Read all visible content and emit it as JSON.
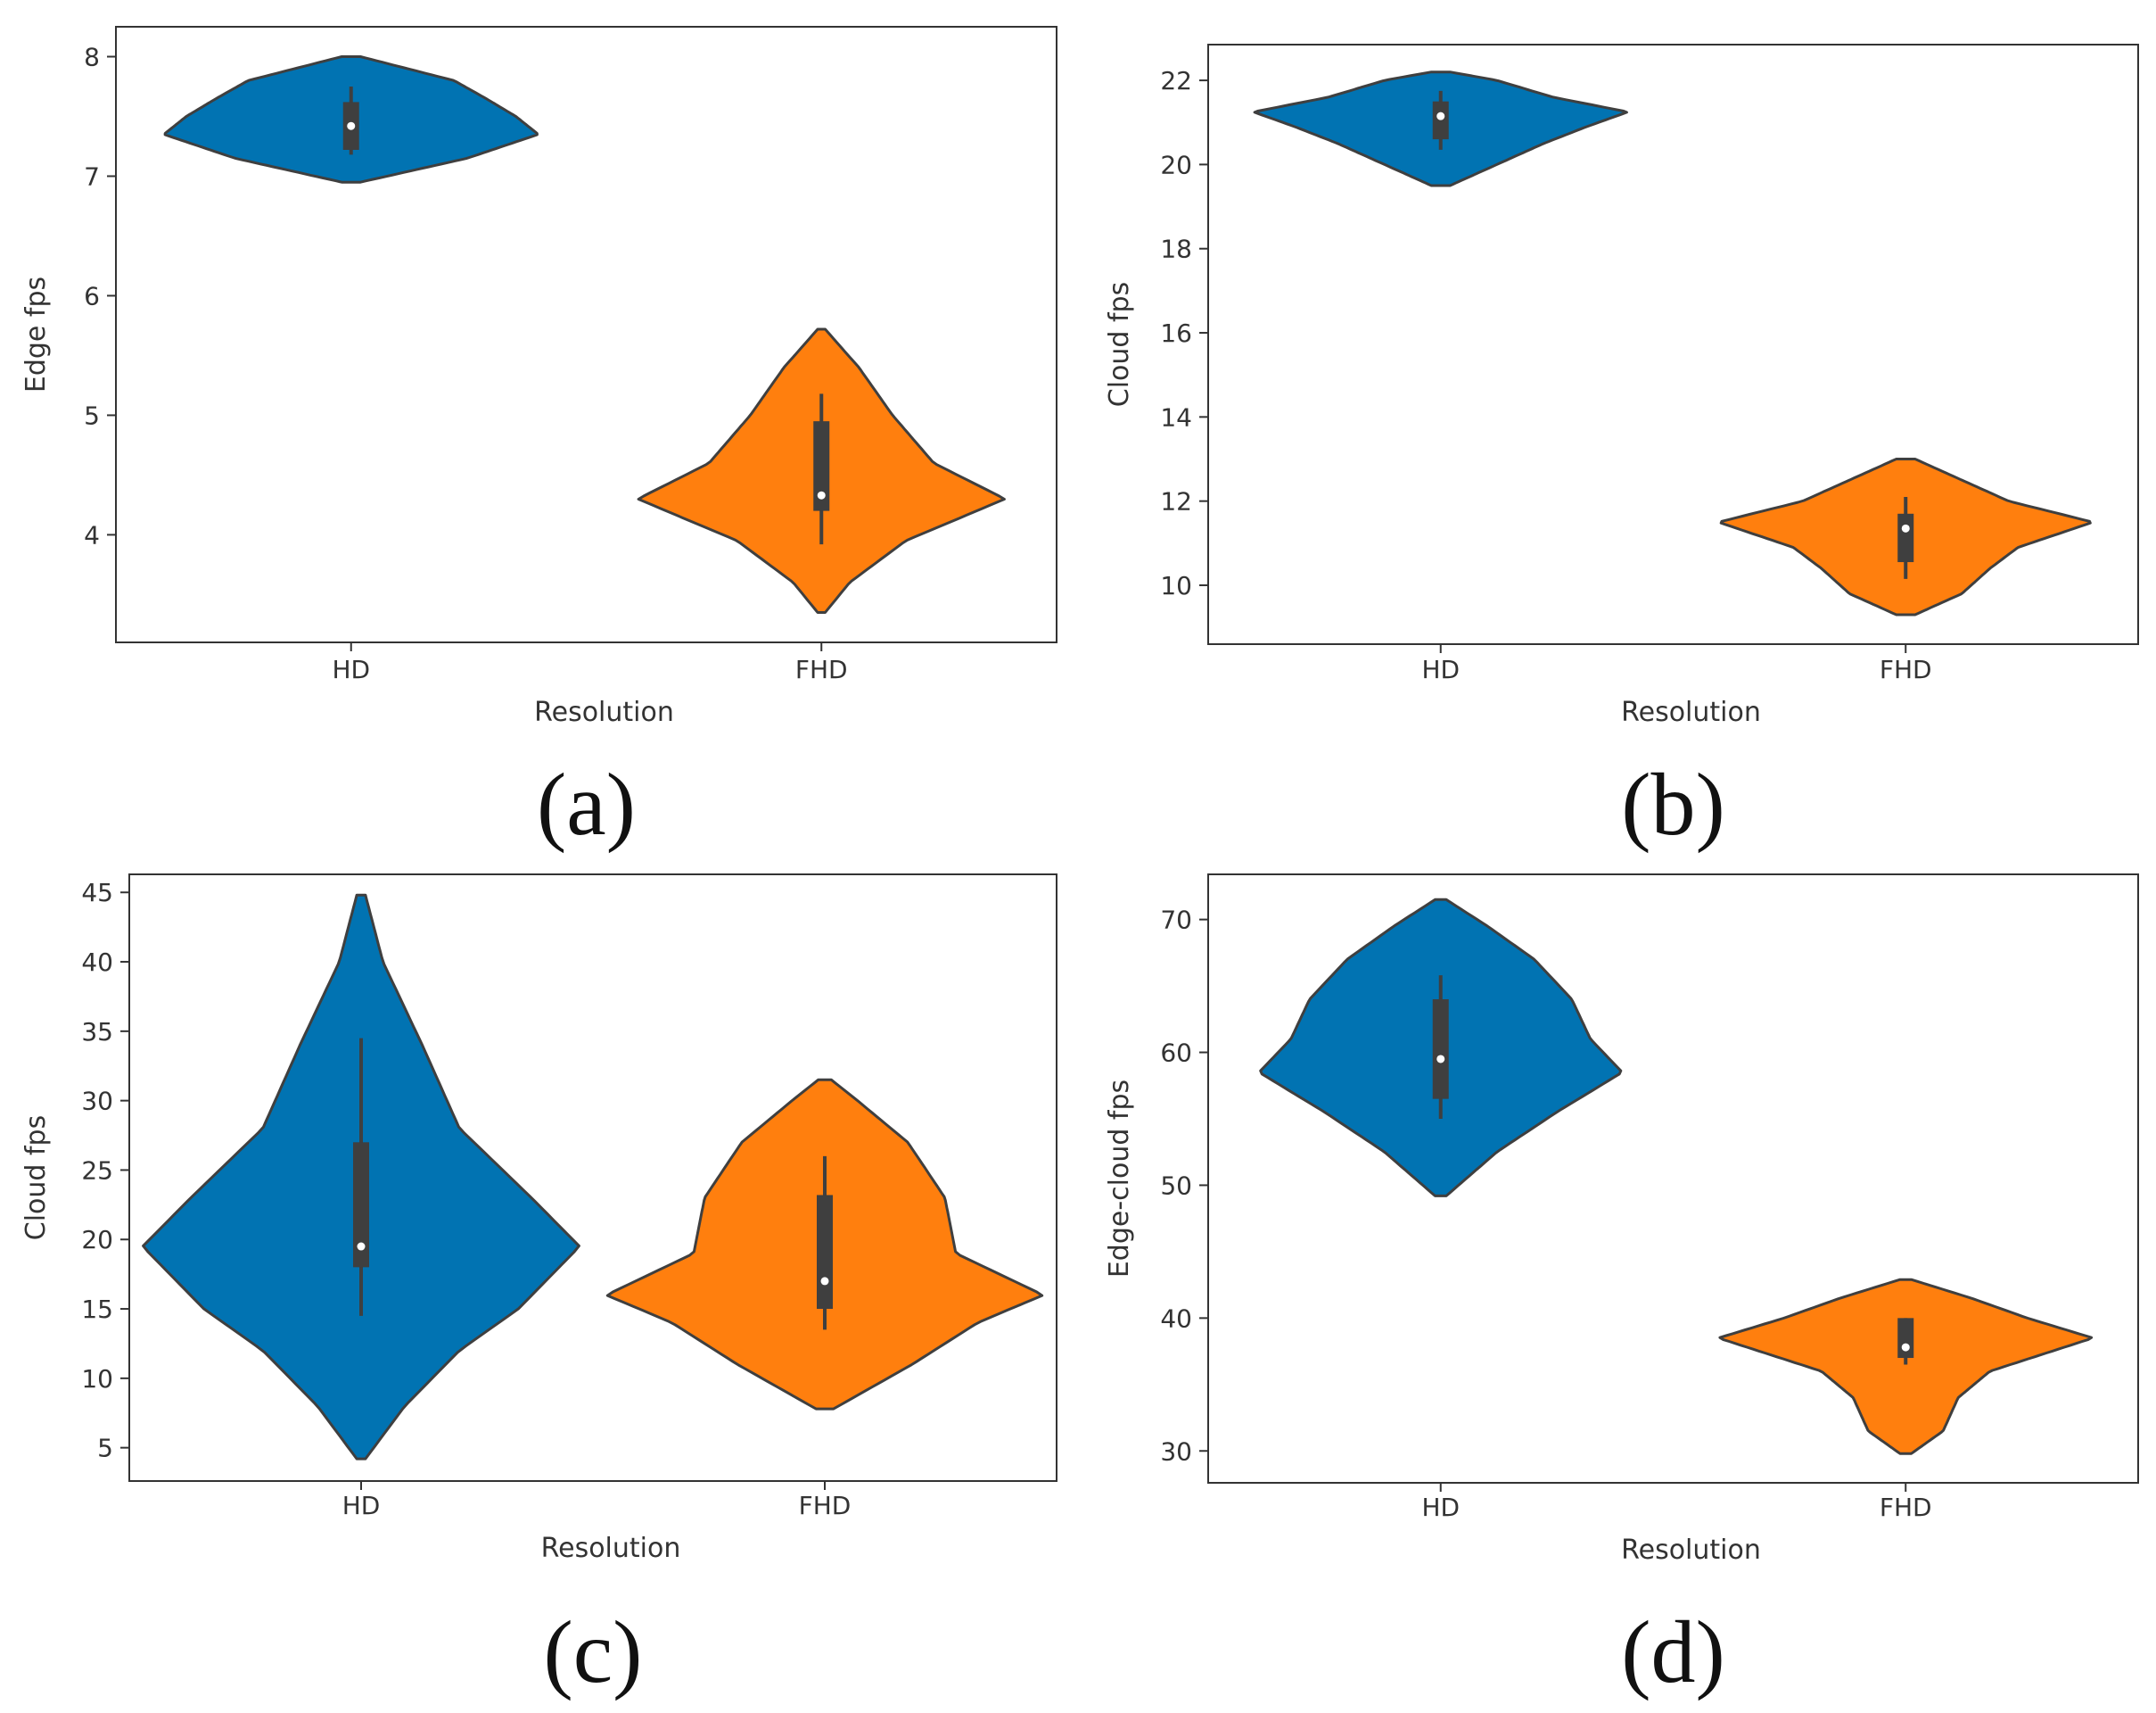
{
  "chart_data": [
    {
      "type": "violin",
      "panel": "(a)",
      "xlabel": "Resolution",
      "ylabel": "Edge fps",
      "categories": [
        "HD",
        "FHD"
      ],
      "ylim": [
        3.1,
        8.25
      ],
      "yticks": [
        4,
        5,
        6,
        7,
        8
      ],
      "grid": false,
      "violins": [
        {
          "category": "HD",
          "color": "#0173B2",
          "min": 6.95,
          "max": 8.0,
          "q1": 7.22,
          "median": 7.42,
          "q3": 7.62,
          "whisker_low": 7.18,
          "whisker_high": 7.75,
          "density": [
            [
              6.95,
              0.05
            ],
            [
              7.15,
              0.62
            ],
            [
              7.35,
              1.0
            ],
            [
              7.5,
              0.88
            ],
            [
              7.65,
              0.72
            ],
            [
              7.8,
              0.55
            ],
            [
              7.9,
              0.3
            ],
            [
              8.0,
              0.05
            ]
          ]
        },
        {
          "category": "FHD",
          "color": "#FF7F0E",
          "min": 3.35,
          "max": 5.72,
          "q1": 4.2,
          "median": 4.33,
          "q3": 4.95,
          "whisker_low": 3.92,
          "whisker_high": 5.18,
          "density": [
            [
              3.35,
              0.02
            ],
            [
              3.6,
              0.15
            ],
            [
              3.95,
              0.45
            ],
            [
              4.3,
              0.98
            ],
            [
              4.6,
              0.6
            ],
            [
              5.0,
              0.38
            ],
            [
              5.4,
              0.2
            ],
            [
              5.72,
              0.02
            ]
          ]
        }
      ]
    },
    {
      "type": "violin",
      "panel": "(b)",
      "xlabel": "Resolution",
      "ylabel": "Cloud fps",
      "categories": [
        "HD",
        "FHD"
      ],
      "ylim": [
        8.6,
        22.85
      ],
      "yticks": [
        10,
        12,
        14,
        16,
        18,
        20,
        22
      ],
      "grid": false,
      "violins": [
        {
          "category": "HD",
          "color": "#0173B2",
          "min": 19.5,
          "max": 22.2,
          "q1": 20.6,
          "median": 21.15,
          "q3": 21.5,
          "whisker_low": 20.35,
          "whisker_high": 21.75,
          "density": [
            [
              19.5,
              0.05
            ],
            [
              20.0,
              0.3
            ],
            [
              20.5,
              0.55
            ],
            [
              20.9,
              0.78
            ],
            [
              21.25,
              1.0
            ],
            [
              21.6,
              0.6
            ],
            [
              22.0,
              0.3
            ],
            [
              22.2,
              0.05
            ]
          ]
        },
        {
          "category": "FHD",
          "color": "#FF7F0E",
          "min": 9.3,
          "max": 13.0,
          "q1": 10.55,
          "median": 11.35,
          "q3": 11.7,
          "whisker_low": 10.15,
          "whisker_high": 12.1,
          "density": [
            [
              9.3,
              0.05
            ],
            [
              9.8,
              0.3
            ],
            [
              10.4,
              0.45
            ],
            [
              10.9,
              0.6
            ],
            [
              11.5,
              1.0
            ],
            [
              12.0,
              0.55
            ],
            [
              12.6,
              0.25
            ],
            [
              13.0,
              0.05
            ]
          ]
        }
      ]
    },
    {
      "type": "violin",
      "panel": "(c)",
      "xlabel": "Resolution",
      "ylabel": "Cloud fps",
      "categories": [
        "HD",
        "FHD"
      ],
      "ylim": [
        2.6,
        46.3
      ],
      "yticks": [
        5,
        10,
        15,
        20,
        25,
        30,
        35,
        40,
        45
      ],
      "grid": false,
      "violins": [
        {
          "category": "HD",
          "color": "#0173B2",
          "min": 4.2,
          "max": 44.8,
          "q1": 18.0,
          "median": 19.5,
          "q3": 27.0,
          "whisker_low": 14.5,
          "whisker_high": 34.5,
          "density": [
            [
              4.2,
              0.02
            ],
            [
              8.0,
              0.2
            ],
            [
              12.0,
              0.45
            ],
            [
              15.0,
              0.72
            ],
            [
              19.5,
              1.0
            ],
            [
              23.0,
              0.78
            ],
            [
              28.0,
              0.45
            ],
            [
              34.0,
              0.28
            ],
            [
              40.0,
              0.1
            ],
            [
              44.8,
              0.02
            ]
          ]
        },
        {
          "category": "FHD",
          "color": "#FF7F0E",
          "min": 7.8,
          "max": 31.5,
          "q1": 15.0,
          "median": 17.0,
          "q3": 23.2,
          "whisker_low": 13.5,
          "whisker_high": 26.0,
          "density": [
            [
              7.8,
              0.04
            ],
            [
              11.0,
              0.4
            ],
            [
              14.0,
              0.7
            ],
            [
              16.0,
              1.0
            ],
            [
              19.0,
              0.6
            ],
            [
              23.0,
              0.55
            ],
            [
              27.0,
              0.38
            ],
            [
              30.0,
              0.15
            ],
            [
              31.5,
              0.03
            ]
          ]
        }
      ]
    },
    {
      "type": "violin",
      "panel": "(d)",
      "xlabel": "Resolution",
      "ylabel": "Edge-cloud fps",
      "categories": [
        "HD",
        "FHD"
      ],
      "ylim": [
        27.6,
        73.4
      ],
      "yticks": [
        30,
        40,
        50,
        60,
        70
      ],
      "grid": false,
      "violins": [
        {
          "category": "HD",
          "color": "#0173B2",
          "min": 49.2,
          "max": 71.5,
          "q1": 56.5,
          "median": 59.5,
          "q3": 64.0,
          "whisker_low": 55.0,
          "whisker_high": 65.8,
          "density": [
            [
              49.2,
              0.03
            ],
            [
              52.5,
              0.3
            ],
            [
              55.5,
              0.62
            ],
            [
              58.5,
              0.97
            ],
            [
              61.0,
              0.8
            ],
            [
              64.0,
              0.7
            ],
            [
              67.0,
              0.5
            ],
            [
              69.5,
              0.25
            ],
            [
              71.5,
              0.03
            ]
          ]
        },
        {
          "category": "FHD",
          "color": "#FF7F0E",
          "min": 29.8,
          "max": 42.9,
          "q1": 37.0,
          "median": 37.8,
          "q3": 40.0,
          "whisker_low": 36.5,
          "whisker_high": 40.0,
          "density": [
            [
              29.8,
              0.03
            ],
            [
              31.5,
              0.2
            ],
            [
              34.0,
              0.28
            ],
            [
              36.0,
              0.45
            ],
            [
              38.5,
              1.0
            ],
            [
              40.0,
              0.65
            ],
            [
              41.5,
              0.35
            ],
            [
              42.9,
              0.03
            ]
          ]
        }
      ]
    }
  ]
}
